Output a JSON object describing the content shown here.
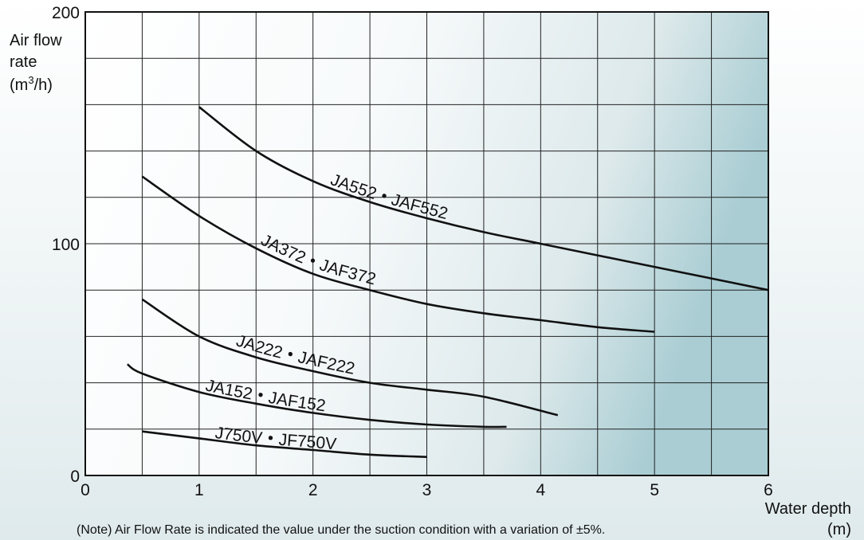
{
  "chart_data": {
    "type": "line",
    "xlabel": [
      "Water depth",
      "(m)"
    ],
    "ylabel": [
      "Air flow",
      "rate",
      "(m",
      "3",
      "/h)"
    ],
    "xlim": [
      0,
      6
    ],
    "ylim": [
      0,
      200
    ],
    "x_ticks": [
      "0",
      "1",
      "2",
      "3",
      "4",
      "5",
      "6"
    ],
    "y_ticks": [
      "0",
      "100",
      "200"
    ],
    "x_grid_step": 0.5,
    "y_grid_step": 20,
    "grid": true,
    "note": "(Note) Air Flow Rate is indicated the value under the suction condition with a variation of ±5%.",
    "series": [
      {
        "name": "JA552・JAF552",
        "label_parts": [
          "JA552",
          "JAF552"
        ],
        "x": [
          1.0,
          1.5,
          2.0,
          2.5,
          3.0,
          3.5,
          4.0,
          4.5,
          5.0,
          5.5,
          6.0
        ],
        "values": [
          159,
          140,
          127,
          118,
          111,
          105,
          100,
          95,
          90,
          85,
          80
        ]
      },
      {
        "name": "JA372・JAF372",
        "label_parts": [
          "JA372",
          "JAF372"
        ],
        "x": [
          0.5,
          1.0,
          1.5,
          2.0,
          2.5,
          3.0,
          3.5,
          4.0,
          4.5,
          5.0
        ],
        "values": [
          129,
          112,
          98,
          87,
          80,
          74,
          70,
          67,
          64,
          62
        ]
      },
      {
        "name": "JA222・JAF222",
        "label_parts": [
          "JA222",
          "JAF222"
        ],
        "x": [
          0.5,
          1.0,
          1.5,
          2.0,
          2.5,
          3.0,
          3.5,
          4.15
        ],
        "values": [
          76,
          60,
          51,
          45,
          40,
          37,
          34,
          26
        ]
      },
      {
        "name": "JA152・JAF152",
        "label_parts": [
          "JA152",
          "JAF152"
        ],
        "x": [
          0.37,
          0.5,
          1.0,
          1.5,
          2.0,
          2.5,
          3.0,
          3.5,
          3.7
        ],
        "values": [
          48,
          44,
          36,
          31,
          27,
          24,
          22,
          21,
          21
        ]
      },
      {
        "name": "J750V・JF750V",
        "label_parts": [
          "J750V",
          "JF750V"
        ],
        "x": [
          0.5,
          1.0,
          1.5,
          2.0,
          2.5,
          3.0
        ],
        "values": [
          19,
          16,
          13,
          11,
          9,
          8
        ]
      }
    ]
  }
}
